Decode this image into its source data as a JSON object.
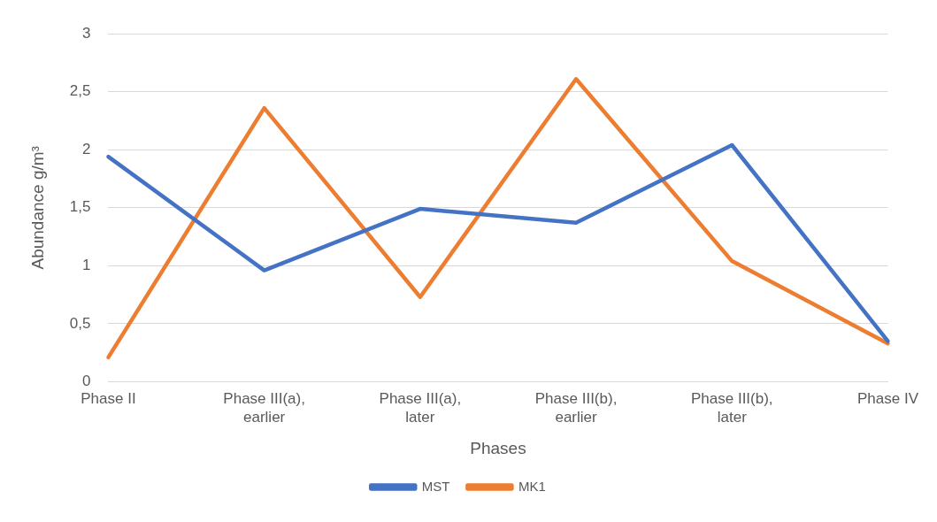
{
  "chart_data": {
    "type": "line",
    "xlabel": "Phases",
    "ylabel": "Abundance g/m³",
    "categories": [
      "Phase II",
      "Phase III(a), earlier",
      "Phase III(a), later",
      "Phase III(b), earlier",
      "Phase III(b), later",
      "Phase IV"
    ],
    "series": [
      {
        "name": "MST",
        "color": "#4472c4",
        "values": [
          1.94,
          0.96,
          1.49,
          1.37,
          2.04,
          0.35
        ]
      },
      {
        "name": "MK1",
        "color": "#ed7d31",
        "values": [
          0.21,
          2.36,
          0.73,
          2.61,
          1.04,
          0.33
        ]
      }
    ],
    "ylim": [
      0,
      3
    ],
    "yticks": [
      0,
      {
        "value": 0.5,
        "label": "0,5"
      },
      1,
      {
        "value": 1.5,
        "label": "1,5"
      },
      2,
      {
        "value": 2.5,
        "label": "2,5"
      },
      3
    ],
    "grid": "y",
    "legend": "bottom",
    "marker": "none",
    "line_style": "solid"
  }
}
